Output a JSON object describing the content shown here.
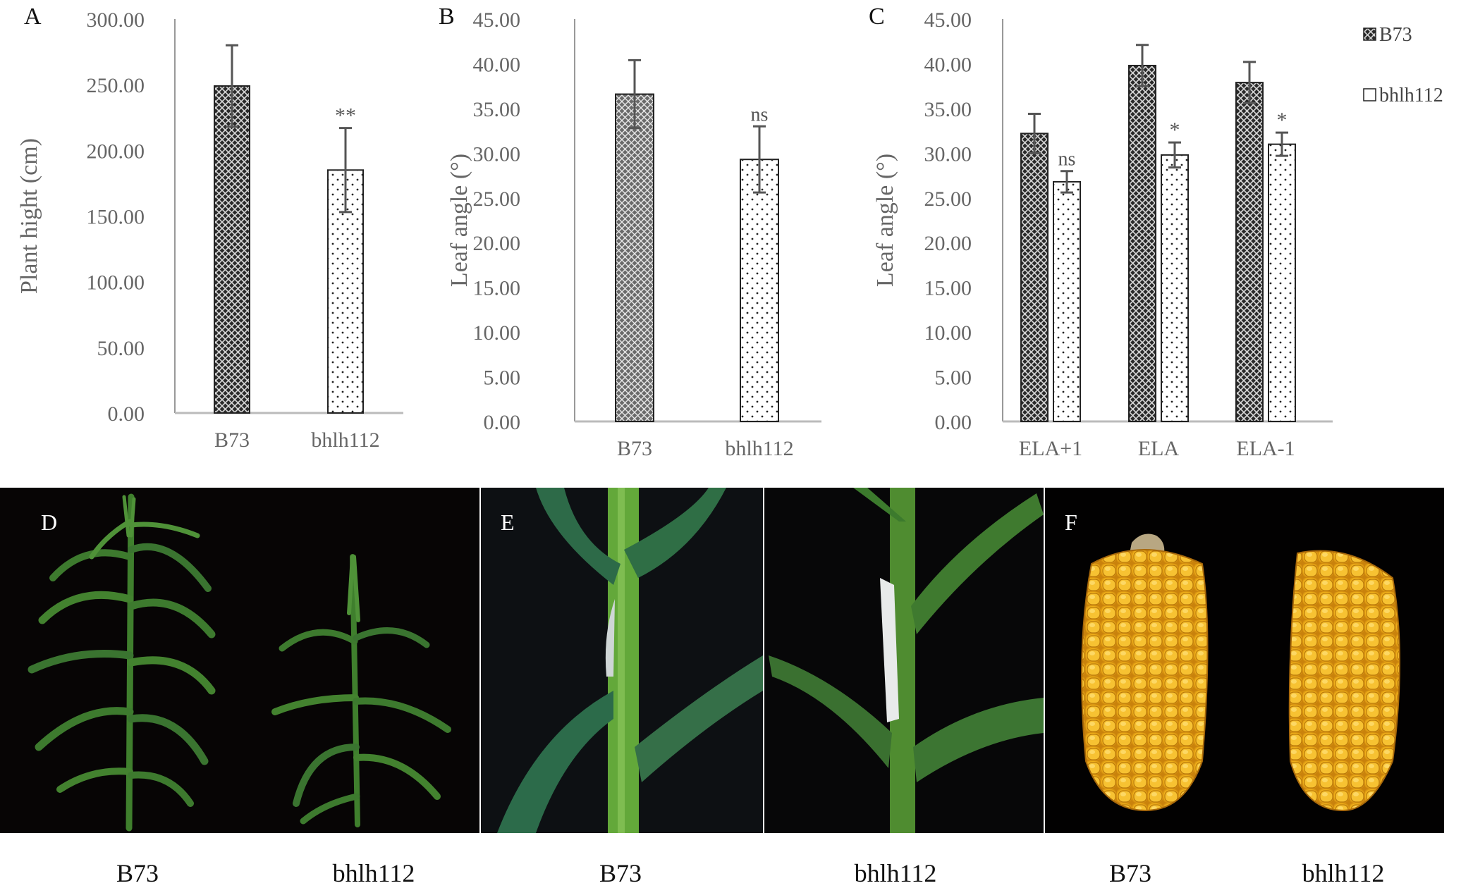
{
  "panel_labels": {
    "a": "A",
    "b": "B",
    "c": "C",
    "d": "D",
    "e": "E",
    "f": "F"
  },
  "legend": [
    {
      "name": "B73",
      "fill": "crosshatch-dark"
    },
    {
      "name": "bhlh112",
      "fill": "dots-light"
    }
  ],
  "chart_data": [
    {
      "type": "bar",
      "panel": "A",
      "categories": [
        "B73",
        "bhlh112"
      ],
      "values": [
        249.0,
        185.0
      ],
      "errors": [
        31.0,
        32.0
      ],
      "significance": [
        "",
        "**"
      ],
      "ylabel": "Plant hight (cm)",
      "ylim": [
        0,
        300
      ],
      "yticks": [
        "0.00",
        "50.00",
        "100.00",
        "150.00",
        "200.00",
        "250.00",
        "300.00"
      ],
      "grid": false
    },
    {
      "type": "bar",
      "panel": "B",
      "categories": [
        "B73",
        "bhlh112"
      ],
      "values": [
        36.6,
        29.3
      ],
      "errors": [
        3.8,
        3.7
      ],
      "significance": [
        "",
        "ns"
      ],
      "ylabel": "Leaf angle (°)",
      "ylim": [
        0,
        45
      ],
      "yticks": [
        "0.00",
        "5.00",
        "10.00",
        "15.00",
        "20.00",
        "25.00",
        "30.00",
        "35.00",
        "40.00",
        "45.00"
      ],
      "grid": false
    },
    {
      "type": "bar",
      "panel": "C",
      "categories": [
        "ELA+1",
        "ELA",
        "ELA-1"
      ],
      "series": [
        {
          "name": "B73",
          "values": [
            32.2,
            39.8,
            37.9
          ],
          "errors": [
            2.2,
            2.3,
            2.3
          ],
          "significance": [
            "",
            "",
            ""
          ]
        },
        {
          "name": "bhlh112",
          "values": [
            26.8,
            29.8,
            31.0
          ],
          "errors": [
            1.2,
            1.4,
            1.3
          ],
          "significance": [
            "ns",
            "*",
            "*"
          ]
        }
      ],
      "ylabel": "Leaf angle (°)",
      "ylim": [
        0,
        45
      ],
      "yticks": [
        "0.00",
        "5.00",
        "10.00",
        "15.00",
        "20.00",
        "25.00",
        "30.00",
        "35.00",
        "40.00",
        "45.00"
      ],
      "grid": false,
      "legend_position": "top-right"
    }
  ],
  "photos": {
    "d": {
      "captions": [
        "B73",
        "bhlh112"
      ]
    },
    "e": {
      "captions": [
        "B73",
        "bhlh112"
      ]
    },
    "f": {
      "captions": [
        "B73",
        "bhlh112"
      ]
    }
  }
}
